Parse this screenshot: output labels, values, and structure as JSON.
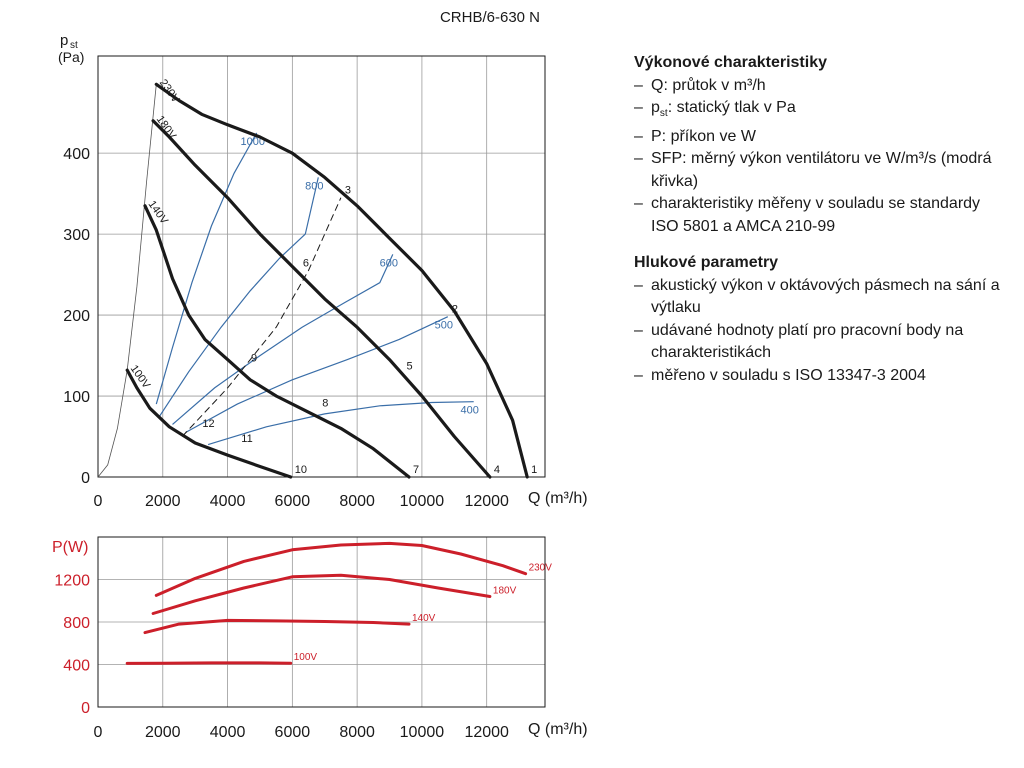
{
  "model": "CRHB/6-630 N",
  "chart_data": [
    {
      "type": "line",
      "title": "CRHB/6-630 N",
      "ylabel_main": "p",
      "ylabel_sub": "st",
      "ylabel_unit": "(Pa)",
      "xlabel": "Q (m³/h)",
      "xlim": [
        0,
        13800
      ],
      "ylim": [
        0,
        520
      ],
      "xticks": [
        0,
        2000,
        4000,
        6000,
        8000,
        10000,
        12000
      ],
      "yticks": [
        0,
        100,
        200,
        300,
        400
      ],
      "grid": true,
      "series": [
        {
          "name": "230V",
          "color": "#1a1a1a",
          "x": [
            1800,
            2500,
            3200,
            4000,
            5000,
            6000,
            7000,
            8000,
            9000,
            10000,
            11000,
            12000,
            12800,
            13250
          ],
          "y": [
            485,
            465,
            448,
            435,
            420,
            400,
            370,
            335,
            295,
            255,
            205,
            140,
            70,
            0
          ]
        },
        {
          "name": "180V",
          "color": "#1a1a1a",
          "x": [
            1700,
            2200,
            3000,
            4000,
            5000,
            6000,
            7000,
            8000,
            9000,
            10000,
            11000,
            12100
          ],
          "y": [
            440,
            420,
            385,
            345,
            300,
            260,
            220,
            185,
            145,
            100,
            50,
            0
          ]
        },
        {
          "name": "140V",
          "color": "#1a1a1a",
          "x": [
            1450,
            1800,
            2300,
            2800,
            3300,
            4000,
            4700,
            5500,
            6500,
            7500,
            8500,
            9600
          ],
          "y": [
            335,
            305,
            245,
            200,
            170,
            145,
            120,
            100,
            80,
            60,
            35,
            0
          ]
        },
        {
          "name": "100V",
          "color": "#1a1a1a",
          "x": [
            900,
            1200,
            1600,
            2200,
            3000,
            4000,
            5000,
            5950
          ],
          "y": [
            132,
            110,
            85,
            62,
            42,
            27,
            13,
            0
          ]
        },
        {
          "name": "1000",
          "color": "#3a6ea8",
          "x": [
            1800,
            2300,
            2900,
            3500,
            4200,
            4900
          ],
          "y": [
            90,
            160,
            240,
            310,
            375,
            425
          ]
        },
        {
          "name": "800",
          "color": "#3a6ea8",
          "x": [
            1900,
            2800,
            3800,
            4700,
            5600,
            6400,
            6800
          ],
          "y": [
            75,
            130,
            185,
            230,
            270,
            300,
            370
          ]
        },
        {
          "name": "600",
          "color": "#3a6ea8",
          "x": [
            2300,
            3600,
            5000,
            6300,
            7600,
            8700,
            9100
          ],
          "y": [
            65,
            110,
            150,
            185,
            215,
            240,
            275
          ]
        },
        {
          "name": "500",
          "color": "#3a6ea8",
          "x": [
            2700,
            4300,
            6000,
            7700,
            9300,
            10800
          ],
          "y": [
            55,
            90,
            120,
            145,
            170,
            198
          ]
        },
        {
          "name": "400",
          "color": "#3a6ea8",
          "x": [
            3400,
            5200,
            7000,
            8700,
            10300,
            11600
          ],
          "y": [
            40,
            62,
            78,
            88,
            92,
            93
          ]
        }
      ],
      "dashed_line": {
        "x": [
          2600,
          4000,
          5500,
          6500,
          7500
        ],
        "y": [
          50,
          110,
          185,
          255,
          345
        ]
      },
      "points": [
        {
          "label": "1",
          "x": 13250,
          "y": 0
        },
        {
          "label": "2",
          "x": 10800,
          "y": 198
        },
        {
          "label": "3",
          "x": 7500,
          "y": 345
        },
        {
          "label": "4",
          "x": 12100,
          "y": 0
        },
        {
          "label": "5",
          "x": 9400,
          "y": 128
        },
        {
          "label": "6",
          "x": 6200,
          "y": 255
        },
        {
          "label": "7",
          "x": 9600,
          "y": 0
        },
        {
          "label": "8",
          "x": 6800,
          "y": 82
        },
        {
          "label": "9",
          "x": 4600,
          "y": 138
        },
        {
          "label": "10",
          "x": 5950,
          "y": 0
        },
        {
          "label": "11",
          "x": 4300,
          "y": 38
        },
        {
          "label": "12",
          "x": 3100,
          "y": 57
        }
      ],
      "system_curve": {
        "x": [
          0,
          300,
          600,
          900,
          1200,
          1500,
          1800
        ],
        "y": [
          0,
          15,
          60,
          132,
          235,
          365,
          485
        ]
      }
    },
    {
      "type": "line",
      "ylabel": "P(W)",
      "xlabel": "Q (m³/h)",
      "xlim": [
        0,
        13800
      ],
      "ylim": [
        0,
        1600
      ],
      "xticks": [
        0,
        2000,
        4000,
        6000,
        8000,
        10000,
        12000
      ],
      "yticks": [
        0,
        400,
        800,
        1200
      ],
      "grid": true,
      "series": [
        {
          "name": "230V",
          "color": "#cc1f2a",
          "x": [
            1800,
            3000,
            4500,
            6000,
            7500,
            9000,
            10000,
            11200,
            12500,
            13200
          ],
          "y": [
            1050,
            1210,
            1370,
            1480,
            1525,
            1540,
            1520,
            1440,
            1330,
            1255
          ]
        },
        {
          "name": "180V",
          "color": "#cc1f2a",
          "x": [
            1700,
            3000,
            4500,
            6000,
            7500,
            9000,
            10500,
            12100
          ],
          "y": [
            880,
            1000,
            1120,
            1225,
            1240,
            1200,
            1120,
            1040
          ]
        },
        {
          "name": "140V",
          "color": "#cc1f2a",
          "x": [
            1450,
            2500,
            4000,
            5500,
            7000,
            8500,
            9600
          ],
          "y": [
            700,
            780,
            815,
            810,
            805,
            795,
            780
          ]
        },
        {
          "name": "100V",
          "color": "#cc1f2a",
          "x": [
            900,
            2000,
            3500,
            5000,
            5950
          ],
          "y": [
            410,
            412,
            415,
            415,
            412
          ]
        }
      ]
    }
  ],
  "info": {
    "section1_title": "Výkonové charakteristiky",
    "section1_items": [
      "Q: průtok v m³/h",
      "pst: statický tlak v Pa",
      "P: příkon ve W",
      "SFP: měrný výkon ventilátoru ve W/m³/s (modrá křivka)",
      "charakteristiky měřeny v souladu se standardy ISO 5801 a AMCA 210-99"
    ],
    "section2_title": "Hlukové parametry",
    "section2_items": [
      "akustický výkon v oktávových pásmech na sání a výtlaku",
      "udávané hodnoty platí pro pracovní body na charakteristikách",
      "měřeno v souladu s ISO 13347-3 2004"
    ]
  }
}
